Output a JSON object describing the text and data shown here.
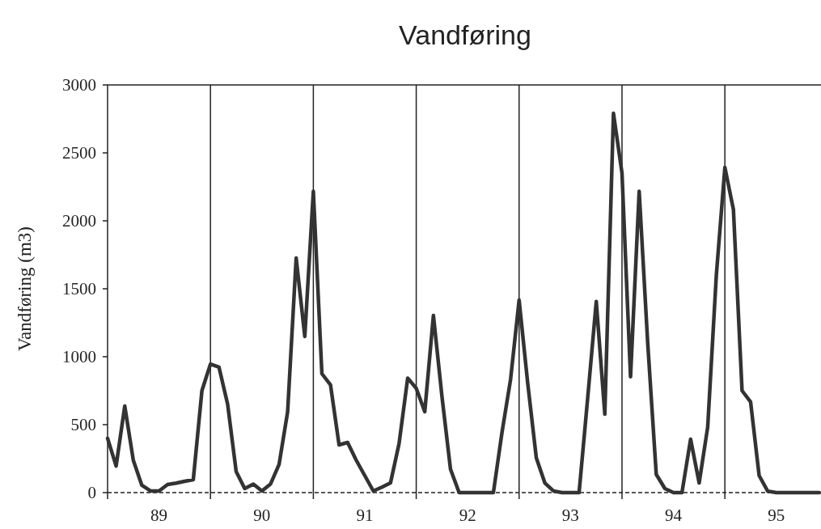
{
  "chart_data": {
    "type": "line",
    "title": "Vandføring",
    "ylabel": "Vandføring (m3)",
    "x": [
      89,
      89.083,
      89.167,
      89.25,
      89.333,
      89.417,
      89.5,
      89.583,
      89.667,
      89.75,
      89.833,
      89.917,
      90,
      90.083,
      90.167,
      90.25,
      90.333,
      90.417,
      90.5,
      90.583,
      90.667,
      90.75,
      90.833,
      90.917,
      91,
      91.083,
      91.167,
      91.25,
      91.333,
      91.417,
      91.5,
      91.583,
      91.667,
      91.75,
      91.833,
      91.917,
      92,
      92.083,
      92.167,
      92.25,
      92.333,
      92.417,
      92.5,
      92.583,
      92.667,
      92.75,
      92.833,
      92.917,
      93,
      93.083,
      93.167,
      93.25,
      93.333,
      93.417,
      93.5,
      93.583,
      93.667,
      93.75,
      93.833,
      93.917,
      94,
      94.083,
      94.167,
      94.25,
      94.333,
      94.417,
      94.5,
      94.583,
      94.667,
      94.75,
      94.833,
      94.917,
      95,
      95.083,
      95.167,
      95.25,
      95.333,
      95.417,
      95.5,
      95.583,
      95.667,
      95.75,
      95.833,
      95.917
    ],
    "series": [
      {
        "color": "#333333",
        "values": [
          400,
          196,
          637,
          238,
          54,
          12,
          12,
          60,
          70,
          83,
          95,
          750,
          946,
          923,
          650,
          155,
          30,
          62,
          12,
          62,
          208,
          595,
          1726,
          1149,
          2217,
          875,
          792,
          351,
          369,
          238,
          125,
          12,
          40,
          71,
          360,
          842,
          768,
          595,
          1304,
          708,
          173,
          0,
          0,
          0,
          0,
          0,
          440,
          833,
          1417,
          810,
          256,
          71,
          12,
          0,
          0,
          0,
          700,
          1406,
          577,
          2792,
          2351,
          852,
          2217,
          1100,
          134,
          30,
          0,
          0,
          393,
          71,
          482,
          1600,
          2393,
          2083,
          750,
          667,
          125,
          10,
          0,
          0,
          0,
          0,
          0,
          0
        ]
      }
    ],
    "xlim": [
      89,
      95.95
    ],
    "ylim": [
      0,
      3000
    ],
    "xticks": [
      {
        "value": 89.5,
        "label": "89"
      },
      {
        "value": 90.5,
        "label": "90"
      },
      {
        "value": 91.5,
        "label": "91"
      },
      {
        "value": 92.5,
        "label": "92"
      },
      {
        "value": 93.5,
        "label": "93"
      },
      {
        "value": 94.5,
        "label": "94"
      },
      {
        "value": 95.5,
        "label": "95"
      }
    ],
    "yticks": [
      0,
      500,
      1000,
      1500,
      2000,
      2500,
      3000
    ],
    "ref_lines": [
      {
        "axis": "x",
        "value": 90
      },
      {
        "axis": "x",
        "value": 91
      },
      {
        "axis": "x",
        "value": 92
      },
      {
        "axis": "x",
        "value": 93
      },
      {
        "axis": "x",
        "value": 94
      },
      {
        "axis": "x",
        "value": 95
      },
      {
        "axis": "y",
        "value": 0,
        "line_style": "dashed"
      }
    ],
    "marker": "none",
    "line_style": "solid"
  }
}
